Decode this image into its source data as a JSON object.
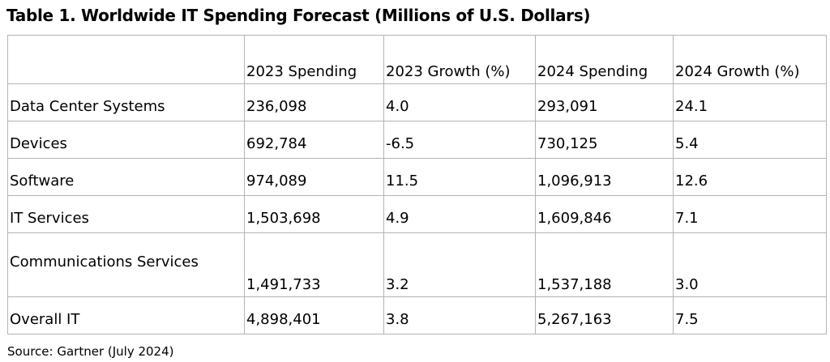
{
  "document": {
    "title": "Table 1. Worldwide IT Spending Forecast (Millions of U.S. Dollars)",
    "source": "Source: Gartner (July 2024)"
  },
  "table": {
    "headers": [
      "",
      "2023 Spending",
      "2023 Growth (%)",
      "2024 Spending",
      "2024 Growth (%)"
    ],
    "rows": [
      [
        "Data Center Systems",
        "236,098",
        "4.0",
        "293,091",
        "24.1"
      ],
      [
        "Devices",
        "692,784",
        "-6.5",
        "730,125",
        "5.4"
      ],
      [
        "Software",
        "974,089",
        "11.5",
        "1,096,913",
        "12.6"
      ],
      [
        "IT Services",
        "1,503,698",
        "4.9",
        "1,609,846",
        "7.1"
      ],
      [
        "Communications Services",
        "1,491,733",
        "3.2",
        "1,537,188",
        "3.0"
      ],
      [
        "Overall IT",
        "4,898,401",
        "3.8",
        "5,267,163",
        "7.5"
      ]
    ]
  }
}
